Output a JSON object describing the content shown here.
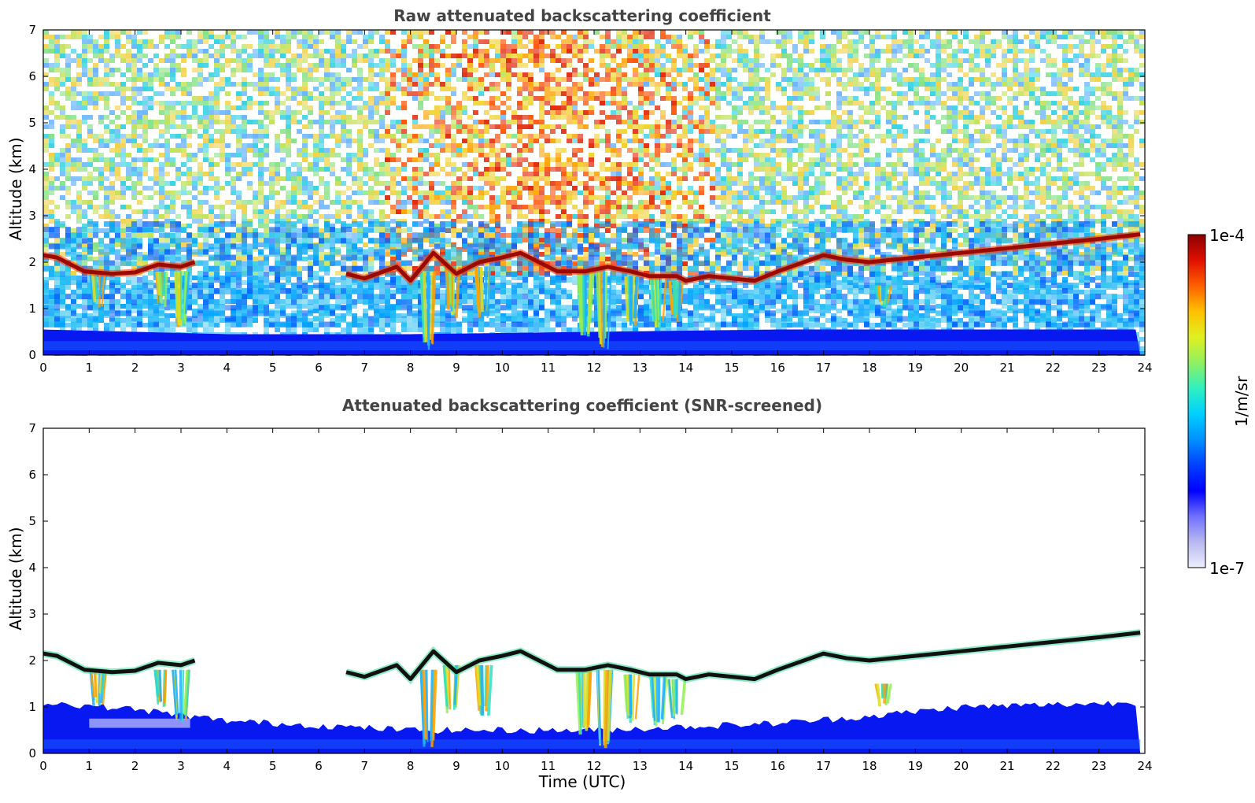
{
  "chart_data": [
    {
      "type": "heatmap",
      "title": "Raw attenuated backscattering coefficient",
      "xlabel": "",
      "ylabel": "Altitude (km)",
      "xlim": [
        0,
        24
      ],
      "ylim": [
        0,
        7
      ],
      "x_ticks": [
        "0",
        "1",
        "2",
        "3",
        "4",
        "5",
        "6",
        "7",
        "8",
        "9",
        "10",
        "11",
        "12",
        "13",
        "14",
        "15",
        "16",
        "17",
        "18",
        "19",
        "20",
        "21",
        "22",
        "23",
        "24"
      ],
      "y_ticks": [
        "0",
        "1",
        "2",
        "3",
        "4",
        "5",
        "6",
        "7"
      ],
      "noise_screened": false,
      "boundary_layer_top": [
        [
          0,
          0.55
        ],
        [
          4,
          0.45
        ],
        [
          8,
          0.45
        ],
        [
          12,
          0.5
        ],
        [
          16,
          0.55
        ],
        [
          20,
          0.55
        ],
        [
          24,
          0.55
        ]
      ],
      "cloud_layer": [
        [
          0.0,
          2.15
        ],
        [
          0.3,
          2.1
        ],
        [
          0.9,
          1.8
        ],
        [
          1.5,
          1.75
        ],
        [
          2.0,
          1.78
        ],
        [
          2.5,
          1.95
        ],
        [
          3.0,
          1.9
        ],
        [
          3.3,
          2.0
        ],
        [
          6.6,
          1.75
        ],
        [
          7.0,
          1.65
        ],
        [
          7.7,
          1.9
        ],
        [
          8.0,
          1.6
        ],
        [
          8.5,
          2.2
        ],
        [
          9.0,
          1.75
        ],
        [
          9.5,
          2.0
        ],
        [
          10.0,
          2.1
        ],
        [
          10.4,
          2.2
        ],
        [
          10.8,
          2.0
        ],
        [
          11.2,
          1.8
        ],
        [
          11.8,
          1.8
        ],
        [
          12.3,
          1.9
        ],
        [
          12.8,
          1.8
        ],
        [
          13.2,
          1.7
        ],
        [
          13.8,
          1.7
        ],
        [
          14.0,
          1.6
        ],
        [
          14.5,
          1.7
        ],
        [
          15.0,
          1.65
        ],
        [
          15.5,
          1.6
        ],
        [
          16.0,
          1.8
        ],
        [
          17.0,
          2.15
        ],
        [
          17.5,
          2.05
        ],
        [
          18.0,
          2.0
        ],
        [
          19.0,
          2.1
        ],
        [
          20.0,
          2.2
        ],
        [
          21.0,
          2.3
        ],
        [
          22.0,
          2.4
        ],
        [
          23.0,
          2.5
        ],
        [
          23.9,
          2.6
        ]
      ],
      "precipitation_streaks": [
        [
          1.2,
          1.8,
          1.0
        ],
        [
          2.6,
          1.8,
          1.0
        ],
        [
          3.0,
          1.8,
          0.6
        ],
        [
          8.4,
          1.8,
          0.1
        ],
        [
          8.9,
          1.9,
          0.8
        ],
        [
          9.6,
          1.9,
          0.8
        ],
        [
          11.8,
          1.8,
          0.4
        ],
        [
          12.2,
          1.8,
          0.1
        ],
        [
          12.8,
          1.7,
          0.6
        ],
        [
          13.4,
          1.7,
          0.5
        ],
        [
          13.8,
          1.6,
          0.7
        ],
        [
          18.3,
          1.5,
          1.0
        ]
      ]
    },
    {
      "type": "heatmap",
      "title": "Attenuated backscattering coefficient (SNR-screened)",
      "xlabel": "Time (UTC)",
      "ylabel": "Altitude (km)",
      "xlim": [
        0,
        24
      ],
      "ylim": [
        0,
        7
      ],
      "x_ticks": [
        "0",
        "1",
        "2",
        "3",
        "4",
        "5",
        "6",
        "7",
        "8",
        "9",
        "10",
        "11",
        "12",
        "13",
        "14",
        "15",
        "16",
        "17",
        "18",
        "19",
        "20",
        "21",
        "22",
        "23",
        "24"
      ],
      "y_ticks": [
        "0",
        "1",
        "2",
        "3",
        "4",
        "5",
        "6",
        "7"
      ],
      "noise_screened": true,
      "boundary_layer_top": [
        [
          0,
          1.1
        ],
        [
          2,
          0.95
        ],
        [
          4,
          0.7
        ],
        [
          6,
          0.6
        ],
        [
          8,
          0.5
        ],
        [
          12,
          0.5
        ],
        [
          16,
          0.65
        ],
        [
          18,
          0.8
        ],
        [
          20,
          1.0
        ],
        [
          24,
          1.1
        ]
      ],
      "cloud_layer": [
        [
          0.0,
          2.15
        ],
        [
          0.3,
          2.1
        ],
        [
          0.9,
          1.8
        ],
        [
          1.5,
          1.75
        ],
        [
          2.0,
          1.78
        ],
        [
          2.5,
          1.95
        ],
        [
          3.0,
          1.9
        ],
        [
          3.3,
          2.0
        ],
        [
          6.6,
          1.75
        ],
        [
          7.0,
          1.65
        ],
        [
          7.7,
          1.9
        ],
        [
          8.0,
          1.6
        ],
        [
          8.5,
          2.2
        ],
        [
          9.0,
          1.75
        ],
        [
          9.5,
          2.0
        ],
        [
          10.0,
          2.1
        ],
        [
          10.4,
          2.2
        ],
        [
          10.8,
          2.0
        ],
        [
          11.2,
          1.8
        ],
        [
          11.8,
          1.8
        ],
        [
          12.3,
          1.9
        ],
        [
          12.8,
          1.8
        ],
        [
          13.2,
          1.7
        ],
        [
          13.8,
          1.7
        ],
        [
          14.0,
          1.6
        ],
        [
          14.5,
          1.7
        ],
        [
          15.0,
          1.65
        ],
        [
          15.5,
          1.6
        ],
        [
          16.0,
          1.8
        ],
        [
          17.0,
          2.15
        ],
        [
          17.5,
          2.05
        ],
        [
          18.0,
          2.0
        ],
        [
          19.0,
          2.1
        ],
        [
          20.0,
          2.2
        ],
        [
          21.0,
          2.3
        ],
        [
          22.0,
          2.4
        ],
        [
          23.0,
          2.5
        ],
        [
          23.9,
          2.6
        ]
      ],
      "precipitation_streaks": [
        [
          1.2,
          1.8,
          1.0
        ],
        [
          2.6,
          1.8,
          1.0
        ],
        [
          3.0,
          1.8,
          0.6
        ],
        [
          8.4,
          1.8,
          0.1
        ],
        [
          8.9,
          1.9,
          0.8
        ],
        [
          9.6,
          1.9,
          0.8
        ],
        [
          11.8,
          1.8,
          0.4
        ],
        [
          12.2,
          1.8,
          0.1
        ],
        [
          12.8,
          1.7,
          0.6
        ],
        [
          13.4,
          1.7,
          0.5
        ],
        [
          13.8,
          1.6,
          0.7
        ],
        [
          18.3,
          1.5,
          1.0
        ]
      ]
    }
  ],
  "colorbar": {
    "label": "1/m/sr",
    "max_label": "1e-4",
    "min_label": "1e-7",
    "colors": [
      "#eeeeff",
      "#b8b8f0",
      "#7070ff",
      "#0000ff",
      "#0040ff",
      "#0090ff",
      "#00d0ff",
      "#30f0c0",
      "#90f060",
      "#e0f020",
      "#ffc000",
      "#ff6000",
      "#e01000",
      "#8b0000"
    ]
  }
}
